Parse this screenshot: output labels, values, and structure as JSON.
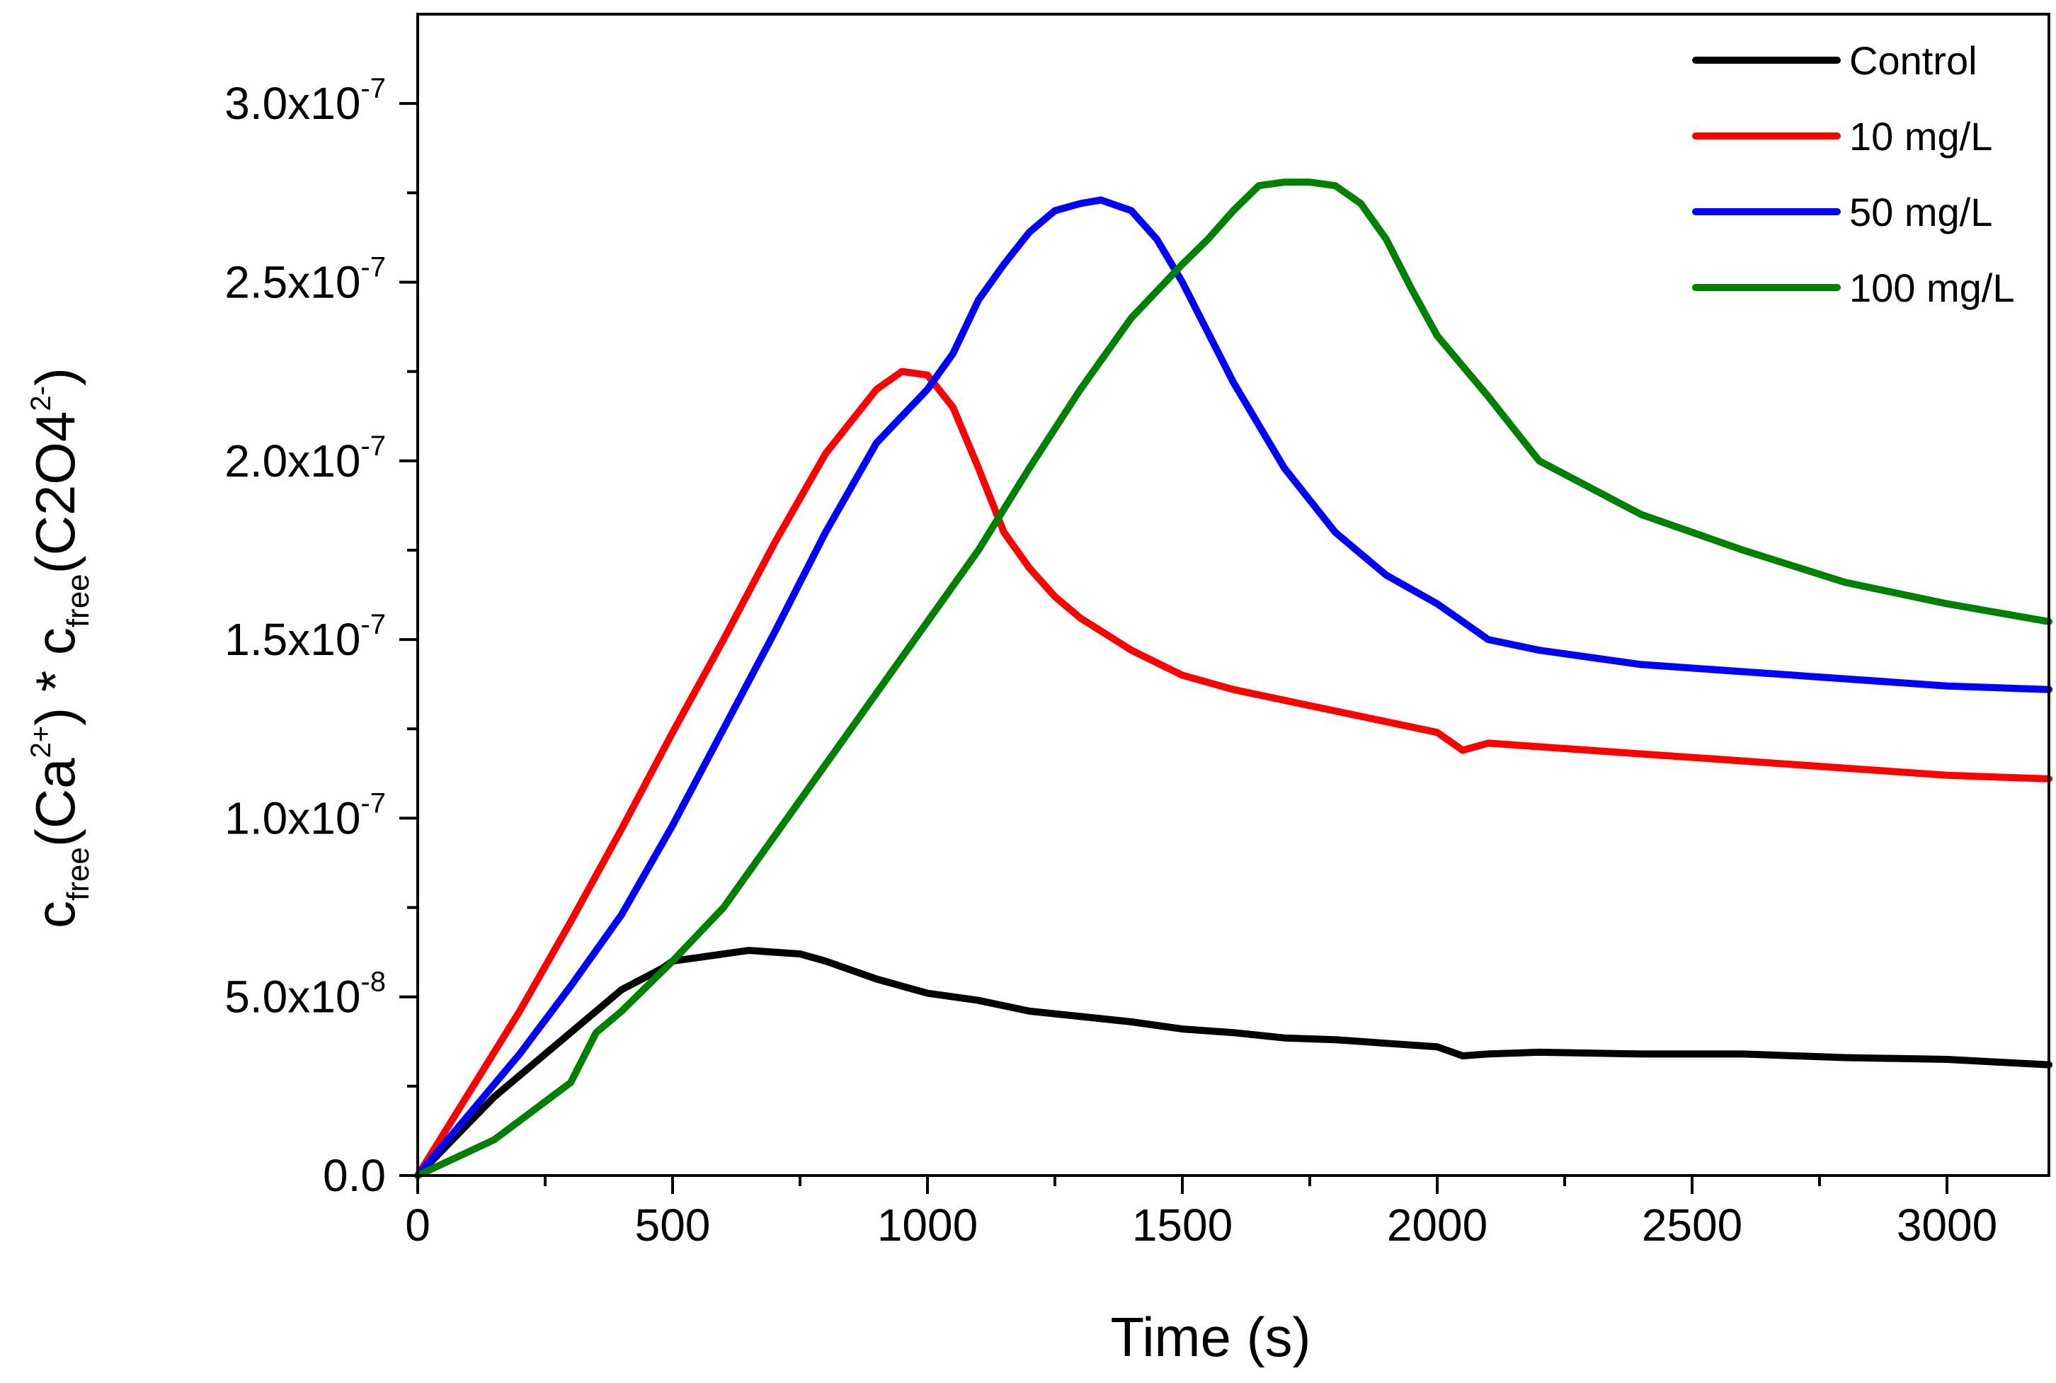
{
  "chart_data": {
    "type": "line",
    "title": "",
    "xlabel": "Time (s)",
    "ylabel": {
      "base1": "c",
      "sub1": "free",
      "open1": "(Ca",
      "sup1": "2+",
      "close1": ") * c",
      "sub2": "free",
      "open2": "(C2O4",
      "sup2": "2-",
      "close2": ")"
    },
    "xlim": [
      0,
      3200
    ],
    "ylim": [
      0,
      3.25e-07
    ],
    "x_ticks": [
      {
        "value": 0,
        "label": "0"
      },
      {
        "value": 500,
        "label": "500"
      },
      {
        "value": 1000,
        "label": "1000"
      },
      {
        "value": 1500,
        "label": "1500"
      },
      {
        "value": 2000,
        "label": "2000"
      },
      {
        "value": 2500,
        "label": "2500"
      },
      {
        "value": 3000,
        "label": "3000"
      }
    ],
    "x_minor_ticks": [
      250,
      750,
      1250,
      1750,
      2250,
      2750
    ],
    "y_ticks": [
      {
        "value": 0,
        "label": "0.0",
        "exp": ""
      },
      {
        "value": 5e-08,
        "label": "5.0x10",
        "exp": "-8"
      },
      {
        "value": 1e-07,
        "label": "1.0x10",
        "exp": "-7"
      },
      {
        "value": 1.5e-07,
        "label": "1.5x10",
        "exp": "-7"
      },
      {
        "value": 2e-07,
        "label": "2.0x10",
        "exp": "-7"
      },
      {
        "value": 2.5e-07,
        "label": "2.5x10",
        "exp": "-7"
      },
      {
        "value": 3e-07,
        "label": "3.0x10",
        "exp": "-7"
      }
    ],
    "y_minor_ticks": [
      2.5e-08,
      7.5e-08,
      1.25e-07,
      1.75e-07,
      2.25e-07,
      2.75e-07
    ],
    "legend_position": "top-right",
    "series": [
      {
        "name": "Control",
        "color": "#000000",
        "x": [
          0,
          150,
          300,
          400,
          480,
          500,
          550,
          600,
          650,
          700,
          750,
          800,
          900,
          1000,
          1100,
          1200,
          1300,
          1400,
          1500,
          1600,
          1700,
          1800,
          1900,
          2000,
          2050,
          2100,
          2200,
          2400,
          2600,
          2800,
          3000,
          3200
        ],
        "y": [
          0,
          2.2e-08,
          4e-08,
          5.2e-08,
          5.8e-08,
          6e-08,
          6.1e-08,
          6.2e-08,
          6.3e-08,
          6.25e-08,
          6.2e-08,
          6e-08,
          5.5e-08,
          5.1e-08,
          4.9e-08,
          4.6e-08,
          4.45e-08,
          4.3e-08,
          4.1e-08,
          4e-08,
          3.85e-08,
          3.8e-08,
          3.7e-08,
          3.6e-08,
          3.35e-08,
          3.4e-08,
          3.45e-08,
          3.4e-08,
          3.4e-08,
          3.3e-08,
          3.25e-08,
          3.1e-08
        ]
      },
      {
        "name": "10 mg/L",
        "color": "#ff0000",
        "x": [
          0,
          100,
          200,
          300,
          400,
          500,
          600,
          700,
          800,
          900,
          950,
          1000,
          1050,
          1100,
          1150,
          1200,
          1250,
          1300,
          1400,
          1500,
          1600,
          1700,
          1800,
          1900,
          2000,
          2050,
          2100,
          2200,
          2400,
          2600,
          2800,
          3000,
          3200
        ],
        "y": [
          0,
          2.3e-08,
          4.6e-08,
          7.1e-08,
          9.7e-08,
          1.24e-07,
          1.5e-07,
          1.77e-07,
          2.02e-07,
          2.2e-07,
          2.25e-07,
          2.24e-07,
          2.15e-07,
          1.98e-07,
          1.8e-07,
          1.7e-07,
          1.62e-07,
          1.56e-07,
          1.47e-07,
          1.4e-07,
          1.36e-07,
          1.33e-07,
          1.3e-07,
          1.27e-07,
          1.24e-07,
          1.19e-07,
          1.21e-07,
          1.2e-07,
          1.18e-07,
          1.16e-07,
          1.14e-07,
          1.12e-07,
          1.11e-07
        ]
      },
      {
        "name": "50 mg/L",
        "color": "#0000ff",
        "x": [
          0,
          100,
          200,
          300,
          400,
          500,
          600,
          700,
          800,
          900,
          1000,
          1050,
          1100,
          1150,
          1200,
          1250,
          1300,
          1340,
          1400,
          1450,
          1500,
          1600,
          1700,
          1800,
          1900,
          2000,
          2050,
          2100,
          2200,
          2400,
          2600,
          2800,
          3000,
          3200
        ],
        "y": [
          0,
          1.7e-08,
          3.4e-08,
          5.3e-08,
          7.3e-08,
          9.8e-08,
          1.25e-07,
          1.52e-07,
          1.8e-07,
          2.05e-07,
          2.2e-07,
          2.3e-07,
          2.45e-07,
          2.55e-07,
          2.64e-07,
          2.7e-07,
          2.72e-07,
          2.73e-07,
          2.7e-07,
          2.62e-07,
          2.5e-07,
          2.22e-07,
          1.98e-07,
          1.8e-07,
          1.68e-07,
          1.6e-07,
          1.55e-07,
          1.5e-07,
          1.47e-07,
          1.43e-07,
          1.41e-07,
          1.39e-07,
          1.37e-07,
          1.36e-07
        ]
      },
      {
        "name": "100 mg/L",
        "color": "#008000",
        "x": [
          0,
          150,
          300,
          350,
          400,
          500,
          600,
          700,
          800,
          900,
          1000,
          1100,
          1200,
          1300,
          1400,
          1500,
          1550,
          1600,
          1650,
          1700,
          1750,
          1800,
          1850,
          1900,
          1950,
          2000,
          2100,
          2200,
          2400,
          2600,
          2800,
          3000,
          3200
        ],
        "y": [
          0,
          1e-08,
          2.6e-08,
          4e-08,
          4.6e-08,
          6e-08,
          7.5e-08,
          9.5e-08,
          1.15e-07,
          1.35e-07,
          1.55e-07,
          1.75e-07,
          1.98e-07,
          2.2e-07,
          2.4e-07,
          2.55e-07,
          2.62e-07,
          2.7e-07,
          2.77e-07,
          2.78e-07,
          2.78e-07,
          2.77e-07,
          2.72e-07,
          2.62e-07,
          2.48e-07,
          2.35e-07,
          2.18e-07,
          2e-07,
          1.85e-07,
          1.75e-07,
          1.66e-07,
          1.6e-07,
          1.55e-07
        ]
      }
    ]
  }
}
